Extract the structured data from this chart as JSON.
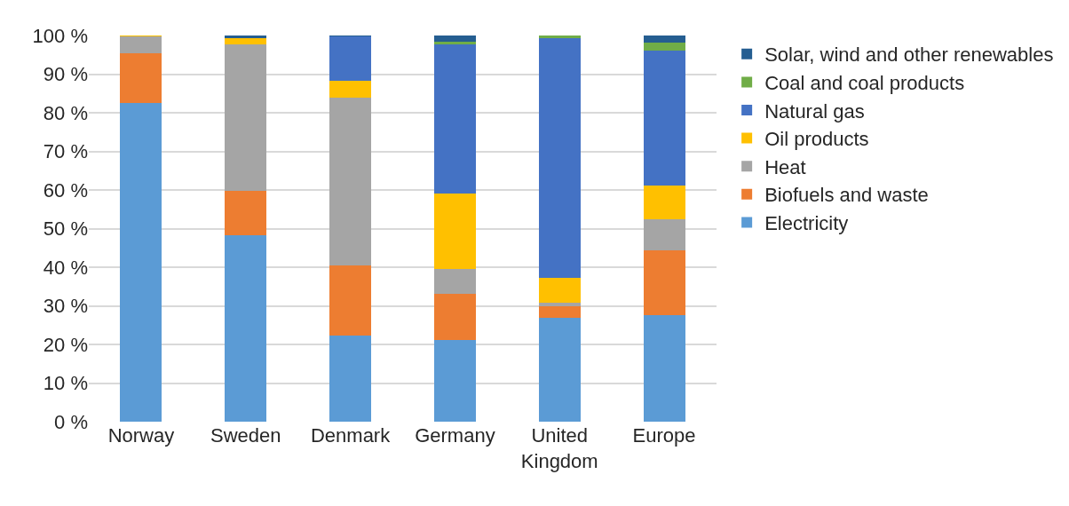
{
  "chart_data": {
    "type": "bar",
    "stacked": true,
    "categories": [
      "Norway",
      "Sweden",
      "Denmark",
      "Germany",
      "United Kingdom",
      "Europe"
    ],
    "series": [
      {
        "name": "Electricity",
        "color": "#5b9bd5",
        "values": [
          82.5,
          48.2,
          22.2,
          21.2,
          26.8,
          27.7
        ]
      },
      {
        "name": "Biofuels and waste",
        "color": "#ed7d31",
        "values": [
          13.0,
          11.6,
          18.3,
          11.8,
          3.0,
          16.6
        ]
      },
      {
        "name": "Heat",
        "color": "#a5a5a5",
        "values": [
          4.3,
          37.9,
          43.5,
          6.5,
          0.9,
          8.0
        ]
      },
      {
        "name": "Oil products",
        "color": "#ffc000",
        "values": [
          0.2,
          1.7,
          4.2,
          19.6,
          6.5,
          8.9
        ]
      },
      {
        "name": "Natural gas",
        "color": "#4472c4",
        "values": [
          0,
          0,
          11.6,
          38.7,
          62.0,
          34.9
        ]
      },
      {
        "name": "Coal and coal products",
        "color": "#70ad47",
        "values": [
          0,
          0,
          0,
          0.7,
          0.8,
          2.1
        ]
      },
      {
        "name": "Solar, wind and other renewables",
        "color": "#255e91",
        "values": [
          0,
          0.6,
          0.2,
          1.5,
          0,
          1.8
        ]
      }
    ],
    "ylim": [
      0,
      100
    ],
    "yticks": [
      {
        "value": 0,
        "label": "0 %"
      },
      {
        "value": 10,
        "label": "10 %"
      },
      {
        "value": 20,
        "label": "20 %"
      },
      {
        "value": 30,
        "label": "30 %"
      },
      {
        "value": 40,
        "label": "40 %"
      },
      {
        "value": 50,
        "label": "50 %"
      },
      {
        "value": 60,
        "label": "60 %"
      },
      {
        "value": 70,
        "label": "70 %"
      },
      {
        "value": 80,
        "label": "80 %"
      },
      {
        "value": 90,
        "label": "90 %"
      },
      {
        "value": 100,
        "label": "100 %"
      }
    ],
    "grid": "y",
    "legend": "right"
  }
}
